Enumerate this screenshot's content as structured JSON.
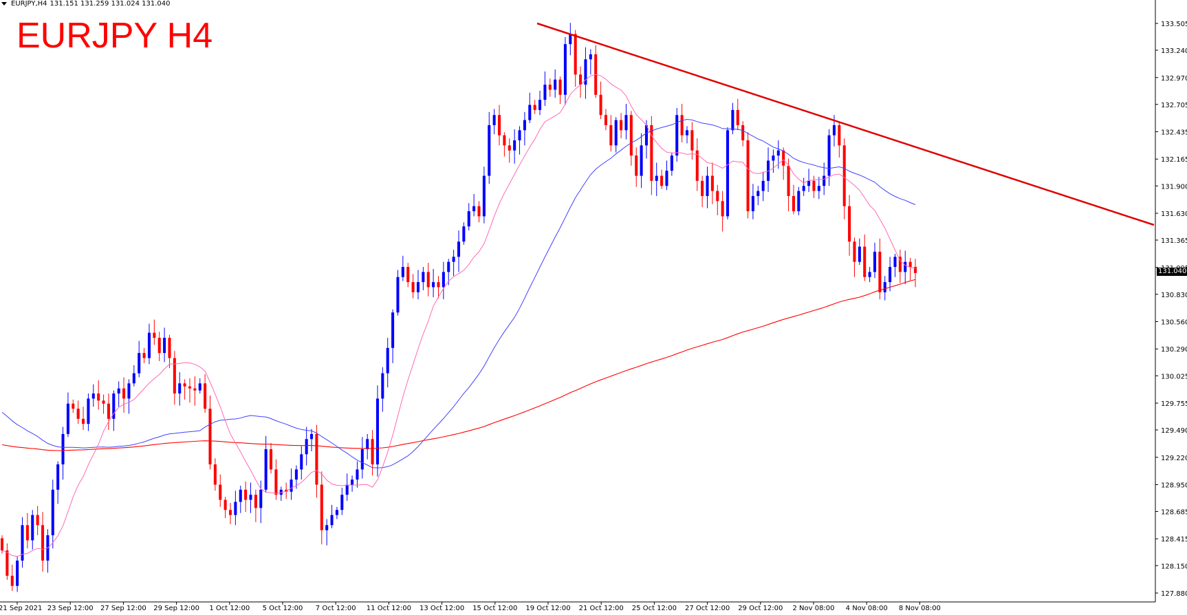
{
  "header": {
    "symbol_tf": "EURJPY,H4",
    "ohlc": "131.151 131.259 131.024 131.040"
  },
  "overlay_title": "EURJPY H4",
  "current_price": "131.040",
  "colors": {
    "bull": "#0000ff",
    "bear": "#ff0000",
    "ma_fast": "#ff69b4",
    "ma_mid": "#4040ff",
    "ma_slow": "#ff0000",
    "trendline": "#e00000",
    "axis": "#000000",
    "background": "#ffffff"
  },
  "chart_data": {
    "type": "candlestick",
    "symbol": "EURJPY",
    "timeframe": "H4",
    "ylim": [
      127.75,
      133.6
    ],
    "y_ticks": [
      "133.505",
      "133.240",
      "132.970",
      "132.705",
      "132.435",
      "132.165",
      "131.900",
      "131.630",
      "131.365",
      "131.095",
      "130.830",
      "130.560",
      "130.290",
      "130.025",
      "129.755",
      "129.490",
      "129.220",
      "128.950",
      "128.685",
      "128.415",
      "128.150",
      "127.880"
    ],
    "x_ticks": [
      "21 Sep 2021",
      "23 Sep 12:00",
      "27 Sep 12:00",
      "29 Sep 12:00",
      "1 Oct 12:00",
      "5 Oct 12:00",
      "7 Oct 12:00",
      "11 Oct 12:00",
      "13 Oct 12:00",
      "15 Oct 12:00",
      "19 Oct 12:00",
      "21 Oct 12:00",
      "25 Oct 12:00",
      "27 Oct 12:00",
      "29 Oct 12:00",
      "2 Nov 08:00",
      "4 Nov 08:00",
      "8 Nov 08:00"
    ],
    "closes": [
      128.3,
      128.05,
      127.95,
      128.2,
      128.55,
      128.4,
      128.65,
      128.55,
      128.2,
      128.45,
      128.9,
      129.15,
      129.45,
      129.75,
      129.7,
      129.6,
      129.55,
      129.8,
      129.85,
      129.78,
      129.75,
      129.6,
      129.85,
      129.9,
      129.8,
      129.95,
      130.05,
      130.25,
      130.2,
      130.45,
      130.4,
      130.25,
      130.4,
      130.2,
      129.85,
      129.95,
      129.92,
      129.9,
      129.88,
      129.95,
      129.7,
      129.15,
      128.95,
      128.8,
      128.7,
      128.65,
      128.78,
      128.9,
      128.8,
      128.85,
      128.72,
      128.9,
      129.3,
      129.1,
      128.85,
      128.9,
      128.88,
      129.0,
      129.1,
      129.25,
      129.4,
      129.45,
      128.95,
      128.5,
      128.55,
      128.65,
      128.7,
      128.85,
      128.95,
      129.0,
      129.1,
      129.3,
      129.4,
      129.15,
      129.8,
      130.05,
      130.3,
      130.65,
      131.0,
      131.1,
      130.95,
      130.85,
      130.95,
      131.05,
      130.9,
      130.95,
      130.9,
      131.05,
      131.15,
      131.2,
      131.35,
      131.5,
      131.65,
      131.7,
      131.6,
      132.0,
      132.5,
      132.6,
      132.4,
      132.3,
      132.25,
      132.35,
      132.45,
      132.55,
      132.7,
      132.65,
      132.75,
      132.9,
      132.85,
      132.95,
      132.8,
      133.3,
      133.4,
      133.0,
      132.9,
      133.15,
      133.2,
      132.8,
      132.6,
      132.5,
      132.3,
      132.55,
      132.45,
      132.6,
      132.2,
      132.0,
      132.3,
      132.5,
      131.95,
      132.0,
      131.9,
      132.05,
      132.2,
      132.6,
      132.4,
      132.45,
      132.25,
      131.95,
      131.8,
      132.0,
      131.85,
      131.75,
      131.6,
      132.45,
      132.65,
      132.5,
      132.35,
      131.65,
      131.8,
      131.85,
      131.95,
      132.15,
      132.2,
      132.25,
      132.1,
      131.8,
      131.65,
      131.85,
      131.9,
      131.95,
      131.85,
      131.9,
      132.0,
      132.4,
      132.5,
      132.3,
      131.7,
      131.35,
      131.15,
      131.3,
      131.0,
      131.05,
      131.25,
      130.85,
      130.95,
      131.1,
      131.2,
      131.05,
      131.15,
      131.1,
      131.04
    ]
  }
}
